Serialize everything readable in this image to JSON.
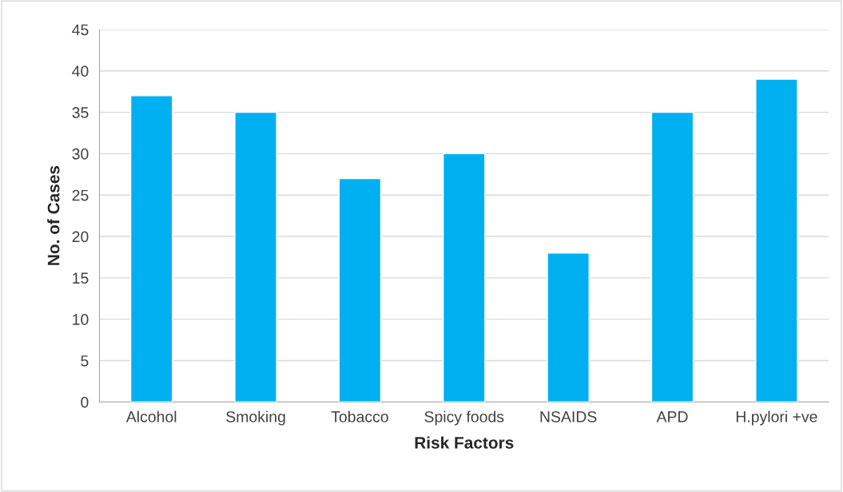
{
  "chart_data": {
    "type": "bar",
    "xlabel": "Risk Factors",
    "ylabel": "No. of Cases",
    "categories": [
      "Alcohol",
      "Smoking",
      "Tobacco",
      "Spicy foods",
      "NSAIDS",
      "APD",
      "H.pylori +ve"
    ],
    "values": [
      37,
      35,
      27,
      30,
      18,
      35,
      39
    ],
    "color": "#00b0f0",
    "ylim": [
      0,
      45
    ],
    "yticks": [
      0,
      5,
      10,
      15,
      20,
      25,
      30,
      35,
      40,
      45
    ],
    "grid": "y",
    "legend": false
  }
}
